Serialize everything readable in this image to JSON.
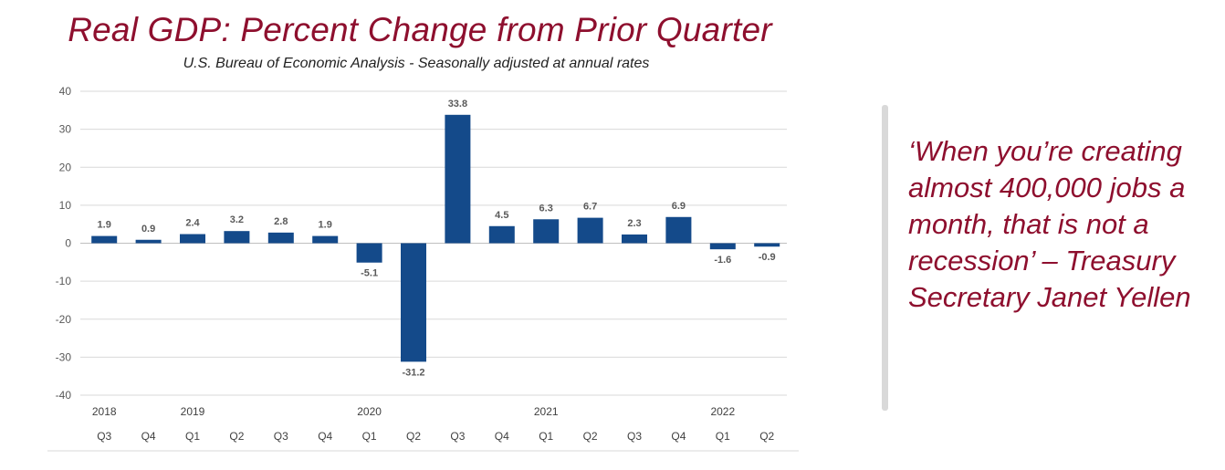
{
  "chart_data": {
    "type": "bar",
    "title": "Real GDP:  Percent Change from Prior Quarter",
    "subtitle": "U.S. Bureau of Economic Analysis - Seasonally adjusted at annual rates",
    "categories": [
      "Q3",
      "Q4",
      "Q1",
      "Q2",
      "Q3",
      "Q4",
      "Q1",
      "Q2",
      "Q3",
      "Q4",
      "Q1",
      "Q2",
      "Q3",
      "Q4",
      "Q1",
      "Q2"
    ],
    "year_labels": [
      {
        "label": "2018",
        "index": 0
      },
      {
        "label": "2019",
        "index": 2
      },
      {
        "label": "2020",
        "index": 6
      },
      {
        "label": "2021",
        "index": 10
      },
      {
        "label": "2022",
        "index": 14
      }
    ],
    "values": [
      1.9,
      0.9,
      2.4,
      3.2,
      2.8,
      1.9,
      -5.1,
      -31.2,
      33.8,
      4.5,
      6.3,
      6.7,
      2.3,
      6.9,
      -1.6,
      -0.9
    ],
    "data_labels": [
      "1.9",
      "0.9",
      "2.4",
      "3.2",
      "2.8",
      "1.9",
      "-5.1",
      "-31.2",
      "33.8",
      "4.5",
      "6.3",
      "6.7",
      "2.3",
      "6.9",
      "-1.6",
      "-0.9"
    ],
    "ylim": [
      -40,
      40
    ],
    "yticks": [
      40,
      30,
      20,
      10,
      0,
      -10,
      -20,
      -30,
      -40
    ],
    "grid": true,
    "bar_color": "#144a8a",
    "title_color": "#8e0f2e"
  },
  "quote": {
    "text": "‘When you’re creating almost 400,000 jobs a month, that is not a recession’ – Treasury Secretary Janet Yellen",
    "color": "#8e0f2e"
  }
}
